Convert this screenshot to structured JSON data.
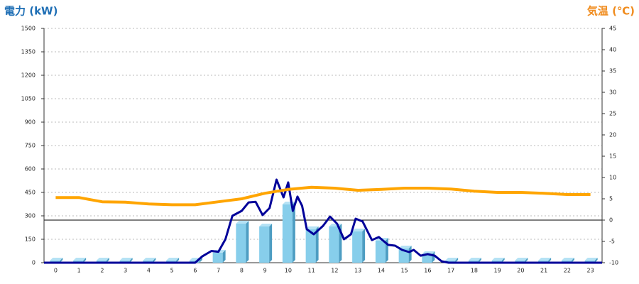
{
  "chart_data": {
    "type": "bar",
    "title": "電力 (kW)",
    "y2_title": "気温 (℃)",
    "title_color": "#1f6fb5",
    "y2_title_color": "#f08c1e",
    "categories": [
      "0",
      "1",
      "2",
      "3",
      "4",
      "5",
      "6",
      "7",
      "8",
      "9",
      "10",
      "11",
      "12",
      "13",
      "14",
      "15",
      "16",
      "17",
      "18",
      "19",
      "20",
      "21",
      "22",
      "23"
    ],
    "xlim": [
      -0.5,
      23.5
    ],
    "ylim": [
      0,
      1500
    ],
    "yticks": [
      0,
      150,
      300,
      450,
      600,
      750,
      900,
      1050,
      1200,
      1350,
      1500
    ],
    "y2lim": [
      -10,
      45
    ],
    "y2ticks": [
      -10,
      -5,
      0,
      5,
      10,
      15,
      20,
      25,
      30,
      35,
      40,
      45
    ],
    "grid": true,
    "series": [
      {
        "type": "bar",
        "color": "#87ceeb",
        "values": [
          0,
          0,
          0,
          0,
          0,
          0,
          0,
          64,
          250,
          232,
          373,
          214,
          232,
          200,
          141,
          91,
          55,
          0,
          0,
          0,
          0,
          0,
          0,
          0
        ]
      },
      {
        "type": "line",
        "color": "#000099",
        "x": [
          -0.5,
          6.0,
          6.3,
          6.7,
          7.0,
          7.3,
          7.6,
          8.0,
          8.3,
          8.6,
          8.9,
          9.2,
          9.5,
          9.8,
          10.0,
          10.2,
          10.4,
          10.6,
          10.8,
          11.1,
          11.5,
          11.8,
          12.1,
          12.4,
          12.7,
          12.9,
          13.2,
          13.6,
          13.9,
          14.3,
          14.6,
          14.9,
          15.2,
          15.4,
          15.7,
          16.0,
          16.3,
          16.6,
          16.9,
          23.5
        ],
        "values": [
          0,
          0,
          40,
          75,
          70,
          150,
          300,
          332,
          386,
          390,
          305,
          350,
          532,
          418,
          514,
          332,
          423,
          364,
          214,
          182,
          236,
          295,
          250,
          150,
          182,
          282,
          264,
          145,
          164,
          114,
          109,
          82,
          68,
          82,
          45,
          55,
          45,
          9,
          0,
          0
        ]
      },
      {
        "type": "line",
        "color": "#ffa500",
        "axis": "y2",
        "x": [
          0,
          1,
          2,
          3,
          4,
          5,
          6,
          7,
          8,
          9,
          10,
          11,
          12,
          13,
          14,
          15,
          16,
          17,
          18,
          19,
          20,
          21,
          22,
          23
        ],
        "values": [
          5.3,
          5.3,
          4.3,
          4.2,
          3.8,
          3.6,
          3.6,
          4.3,
          5.0,
          6.3,
          7.2,
          7.7,
          7.5,
          7.0,
          7.2,
          7.5,
          7.5,
          7.3,
          6.8,
          6.5,
          6.5,
          6.3,
          6.0,
          6.0
        ]
      }
    ]
  }
}
